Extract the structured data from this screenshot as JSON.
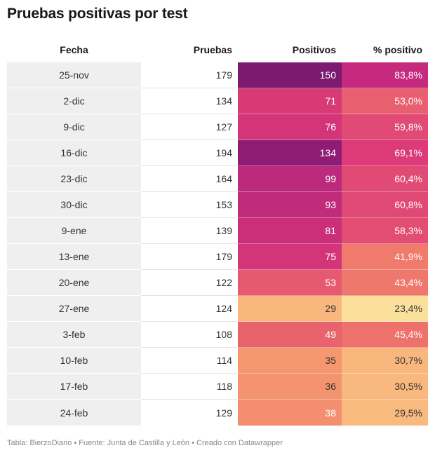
{
  "title": "Pruebas positivas por test",
  "footer": "Tabla: BierzoDiario • Fuente: Junta de Castilla y León • Creado con Datawrapper",
  "chart_data": {
    "type": "table",
    "columns": [
      "Fecha",
      "Pruebas",
      "Positivos",
      "% positivo"
    ],
    "rows": [
      {
        "fecha": "25-nov",
        "pruebas": "179",
        "positivos": "150",
        "pct": "83,8%",
        "pos_color": "#7b1a6e",
        "pct_color": "#c62a7f",
        "pos_text_dark": false,
        "pct_text_dark": false
      },
      {
        "fecha": "2-dic",
        "pruebas": "134",
        "positivos": "71",
        "pct": "53,0%",
        "pos_color": "#d83a78",
        "pct_color": "#e85f6f",
        "pos_text_dark": false,
        "pct_text_dark": false
      },
      {
        "fecha": "9-dic",
        "pruebas": "127",
        "positivos": "76",
        "pct": "59,8%",
        "pos_color": "#d33578",
        "pct_color": "#e04a74",
        "pos_text_dark": false,
        "pct_text_dark": false
      },
      {
        "fecha": "16-dic",
        "pruebas": "194",
        "positivos": "134",
        "pct": "69,1%",
        "pos_color": "#8e1c73",
        "pct_color": "#dc3a79",
        "pos_text_dark": false,
        "pct_text_dark": false
      },
      {
        "fecha": "23-dic",
        "pruebas": "164",
        "positivos": "99",
        "pct": "60,4%",
        "pos_color": "#bb2a7d",
        "pct_color": "#e04a74",
        "pos_text_dark": false,
        "pct_text_dark": false
      },
      {
        "fecha": "30-dic",
        "pruebas": "153",
        "positivos": "93",
        "pct": "60,8%",
        "pos_color": "#c12b7c",
        "pct_color": "#e04973",
        "pos_text_dark": false,
        "pct_text_dark": false
      },
      {
        "fecha": "9-ene",
        "pruebas": "139",
        "positivos": "81",
        "pct": "58,3%",
        "pos_color": "#cc2f7a",
        "pct_color": "#e24d72",
        "pos_text_dark": false,
        "pct_text_dark": false
      },
      {
        "fecha": "13-ene",
        "pruebas": "179",
        "positivos": "75",
        "pct": "41,9%",
        "pos_color": "#d33578",
        "pct_color": "#f07b6c",
        "pos_text_dark": false,
        "pct_text_dark": false
      },
      {
        "fecha": "20-ene",
        "pruebas": "122",
        "positivos": "53",
        "pct": "43,4%",
        "pos_color": "#e55a6e",
        "pct_color": "#ef786c",
        "pos_text_dark": false,
        "pct_text_dark": false
      },
      {
        "fecha": "27-ene",
        "pruebas": "124",
        "positivos": "29",
        "pct": "23,4%",
        "pos_color": "#f9b77e",
        "pct_color": "#fbe09c",
        "pos_text_dark": true,
        "pct_text_dark": true
      },
      {
        "fecha": "3-feb",
        "pruebas": "108",
        "positivos": "49",
        "pct": "45,4%",
        "pos_color": "#e8636c",
        "pct_color": "#ee726c",
        "pos_text_dark": false,
        "pct_text_dark": false
      },
      {
        "fecha": "10-feb",
        "pruebas": "114",
        "positivos": "35",
        "pct": "30,7%",
        "pos_color": "#f5976f",
        "pct_color": "#f9b77e",
        "pos_text_dark": true,
        "pct_text_dark": true
      },
      {
        "fecha": "17-feb",
        "pruebas": "118",
        "positivos": "36",
        "pct": "30,5%",
        "pos_color": "#f4946f",
        "pct_color": "#f9b87e",
        "pos_text_dark": true,
        "pct_text_dark": true
      },
      {
        "fecha": "24-feb",
        "pruebas": "129",
        "positivos": "38",
        "pct": "29,5%",
        "pos_color": "#f38f6f",
        "pct_color": "#f9ba80",
        "pos_text_dark": false,
        "pct_text_dark": true
      }
    ]
  }
}
